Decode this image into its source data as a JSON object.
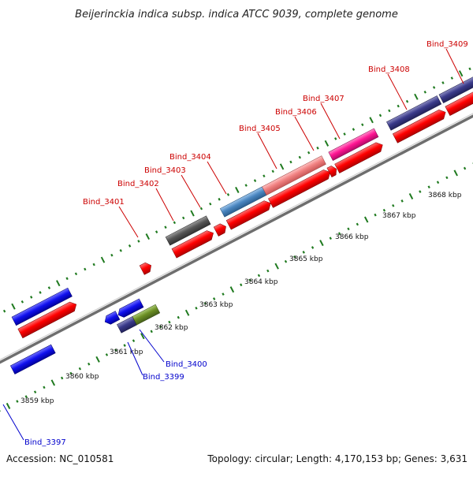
{
  "title": "Beijerinckia indica subsp. indica ATCC 9039, complete genome",
  "footer": {
    "accession": "Accession: NC_010581",
    "summary": "Topology: circular; Length: 4,170,153 bp; Genes: 3,631"
  },
  "colors": {
    "backbone": "#8a8a8a",
    "tick": "#1f7a1f",
    "cds_red": "#ff0000",
    "label_forward": "#cc0000",
    "label_reverse": "#0000cc",
    "blue": "#1010ee",
    "navy": "#3a3a8a",
    "gray": "#555555",
    "steel_blue": "#4a86c0",
    "salmon": "#f08080",
    "magenta": "#ff1493",
    "olive": "#6b8e23"
  },
  "kbp_labels": [
    "3859 kbp",
    "3860 kbp",
    "3861 kbp",
    "3862 kbp",
    "3863 kbp",
    "3864 kbp",
    "3865 kbp",
    "3866 kbp",
    "3867 kbp",
    "3868 kbp"
  ],
  "gene_labels": {
    "forward": [
      "Bind_3401",
      "Bind_3402",
      "Bind_3403",
      "Bind_3404",
      "Bind_3405",
      "Bind_3406",
      "Bind_3407",
      "Bind_3408",
      "Bind_3409"
    ],
    "reverse": [
      "Bind_3397",
      "Bind_3399",
      "Bind_3400"
    ]
  }
}
